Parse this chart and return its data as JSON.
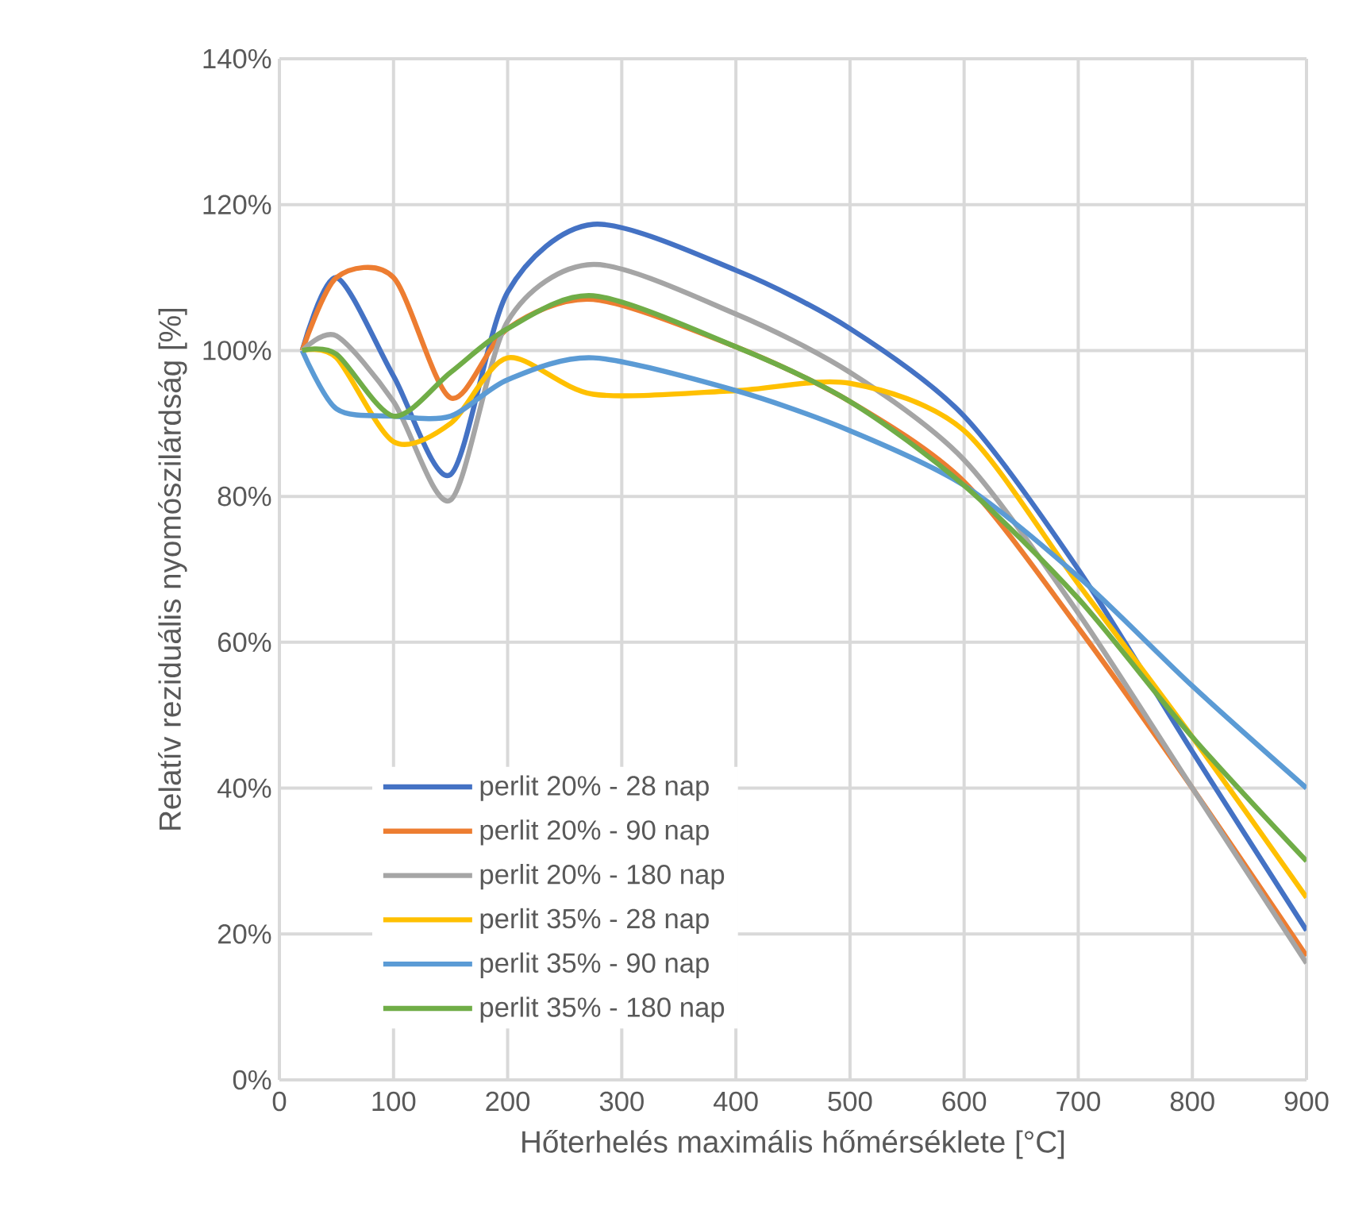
{
  "chart_data": {
    "type": "line",
    "xlabel": "Hőterhelés maximális hőmérséklete [°C]",
    "ylabel": "Relatív reziduális nyomószilárdság [%]",
    "x": [
      20,
      50,
      100,
      150,
      200,
      275,
      400,
      500,
      600,
      700,
      800,
      900
    ],
    "series": [
      {
        "name": "perlit 20% - 28 nap",
        "color": "#4472c4",
        "values": [
          100,
          110,
          96.5,
          83,
          108,
          117.3,
          111,
          103,
          91,
          70,
          45,
          20.5
        ]
      },
      {
        "name": "perlit 20% - 90 nap",
        "color": "#ed7d31",
        "values": [
          100,
          110,
          110,
          93.5,
          103,
          107,
          100.5,
          93,
          82,
          62,
          40,
          17
        ]
      },
      {
        "name": "perlit 20% - 180 nap",
        "color": "#a5a5a5",
        "values": [
          100,
          102,
          93,
          79.5,
          104,
          111.8,
          105,
          97,
          85,
          64,
          40,
          16
        ]
      },
      {
        "name": "perlit 35% - 28 nap",
        "color": "#ffc000",
        "values": [
          100,
          99,
          87.5,
          90,
          99,
          94,
          94.5,
          95.5,
          89,
          68,
          47,
          25
        ]
      },
      {
        "name": "perlit 35% - 90 nap",
        "color": "#5b9bd5",
        "values": [
          100,
          92,
          91,
          91,
          96,
          99,
          94.5,
          89,
          81.5,
          69,
          54,
          40
        ]
      },
      {
        "name": "perlit 35% - 180 nap",
        "color": "#70ad47",
        "values": [
          100,
          99.5,
          91,
          97,
          103,
          107.5,
          100.5,
          93,
          81.5,
          66,
          47,
          30
        ]
      }
    ],
    "xlim": [
      0,
      900
    ],
    "ylim": [
      0,
      140
    ],
    "xticks": [
      0,
      100,
      200,
      300,
      400,
      500,
      600,
      700,
      800,
      900
    ],
    "yticks": [
      {
        "value": 0,
        "label": "0%"
      },
      {
        "value": 20,
        "label": "20%"
      },
      {
        "value": 40,
        "label": "40%"
      },
      {
        "value": 60,
        "label": "60%"
      },
      {
        "value": 80,
        "label": "80%"
      },
      {
        "value": 100,
        "label": "100%"
      },
      {
        "value": 120,
        "label": "120%"
      },
      {
        "value": 140,
        "label": "140%"
      }
    ],
    "grid": true,
    "legend": "bottom left",
    "marker": "none",
    "line_style": "solid"
  }
}
